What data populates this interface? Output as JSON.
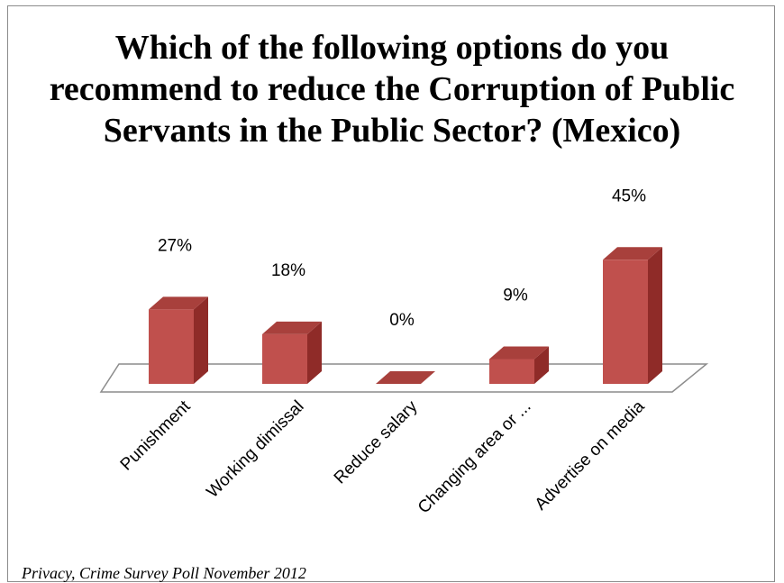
{
  "chart_data": {
    "type": "bar",
    "title_lines": [
      "Which of the following options  do you",
      "recommend to reduce the Corruption  of Public",
      "Servants in the Public  Sector? (Mexico)"
    ],
    "categories": [
      "Punishment",
      "Working dimissal",
      "Reduce salary",
      "Changing area or ...",
      "Advertise on media"
    ],
    "values": [
      27,
      18,
      0,
      9,
      45
    ],
    "value_labels": [
      "27%",
      "18%",
      "0%",
      "9%",
      "45%"
    ],
    "unit": "%",
    "three_d": true,
    "legend": "none",
    "grid": false,
    "bar_color": "#c0504d",
    "bar_side_color": "#8f2b28",
    "bar_top_color": "#a8403c"
  },
  "source": "Privacy, Crime Survey Poll November 2012"
}
